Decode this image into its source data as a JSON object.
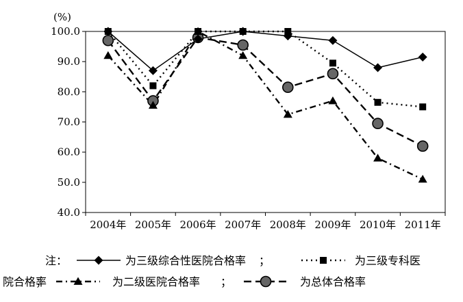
{
  "chart_data": {
    "type": "line",
    "y_unit": "(%)",
    "categories": [
      "2004年",
      "2005年",
      "2006年",
      "2007年",
      "2008年",
      "2009年",
      "2010年",
      "2011年"
    ],
    "ylim": [
      40,
      100
    ],
    "yticks": [
      40,
      50,
      60,
      70,
      80,
      90,
      100
    ],
    "ytick_labels": [
      "40.0",
      "50.0",
      "60.0",
      "70.0",
      "80.0",
      "90.0",
      "100.0"
    ],
    "series": [
      {
        "name": "为三级综合性医院合格率",
        "marker": "diamond",
        "line_style": "solid",
        "values": [
          100.0,
          87.0,
          97.5,
          100.0,
          98.5,
          97.0,
          88.0,
          91.5
        ]
      },
      {
        "name": "为三级专科医院合格率",
        "marker": "square",
        "line_style": "dotted",
        "values": [
          100.0,
          82.0,
          100.0,
          100.0,
          100.0,
          89.5,
          76.5,
          75.0
        ]
      },
      {
        "name": "为二级医院合格率",
        "marker": "triangle",
        "line_style": "dash-dot",
        "values": [
          92.0,
          75.5,
          100.0,
          92.0,
          72.5,
          77.0,
          58.0,
          51.0
        ]
      },
      {
        "name": "为总体合格率",
        "marker": "circle",
        "line_style": "dashed",
        "values": [
          97.0,
          77.0,
          98.0,
          95.5,
          81.5,
          86.0,
          69.5,
          62.0
        ]
      }
    ],
    "legend": {
      "prefix": "注：",
      "separator": "；",
      "placement": "bottom"
    },
    "grid": false
  }
}
